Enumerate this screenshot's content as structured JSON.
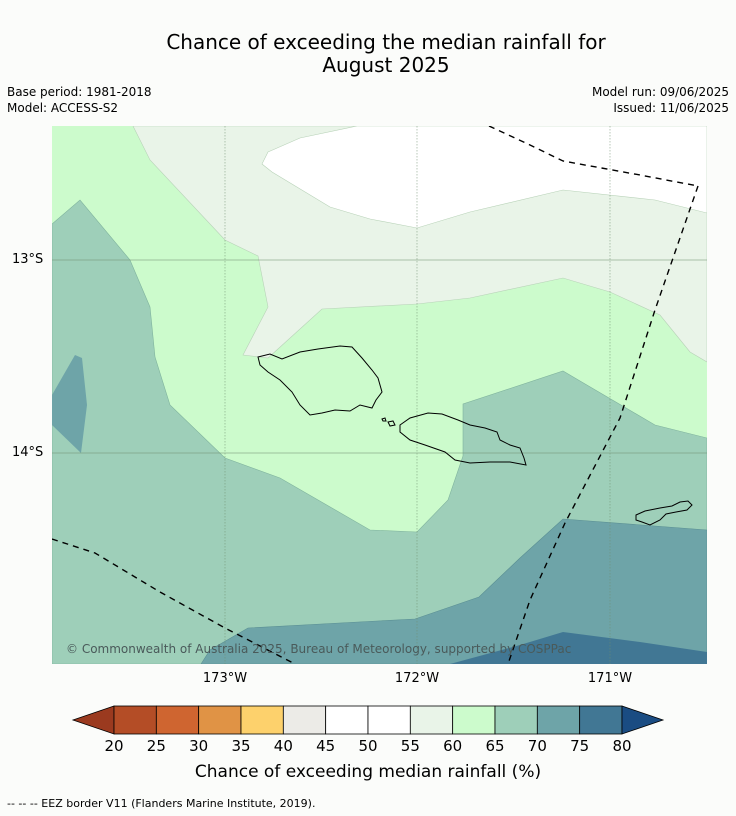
{
  "title_line1": "Chance of exceeding the median rainfall for",
  "title_line2": "August 2025",
  "base_period": "Base period: 1981-2018",
  "model": "Model: ACCESS-S2",
  "model_run": "Model run: 09/06/2025",
  "issued": "Issued: 11/06/2025",
  "lat_labels": [
    "13°S",
    "14°S"
  ],
  "lon_labels": [
    "173°W",
    "172°W",
    "171°W"
  ],
  "copyright": "© Commonwealth of Australia 2025, Bureau of Meteorology, supported by COSPPac",
  "legend": {
    "title": "Chance of exceeding median rainfall (%)",
    "ticks": [
      "20",
      "25",
      "30",
      "35",
      "40",
      "45",
      "50",
      "55",
      "60",
      "65",
      "70",
      "75",
      "80"
    ],
    "colors": [
      "#9b3a1f",
      "#b44d26",
      "#cf6530",
      "#e09345",
      "#fdd16c",
      "#ecebe7",
      "#ffffff",
      "#ffffff",
      "#e9f4e8",
      "#ccfbcc",
      "#9ecfb9",
      "#6ea4a8",
      "#417794",
      "#1a4c82"
    ]
  },
  "footnote": "--  --  -- EEZ border V11 (Flanders Marine Institute, 2019)."
}
